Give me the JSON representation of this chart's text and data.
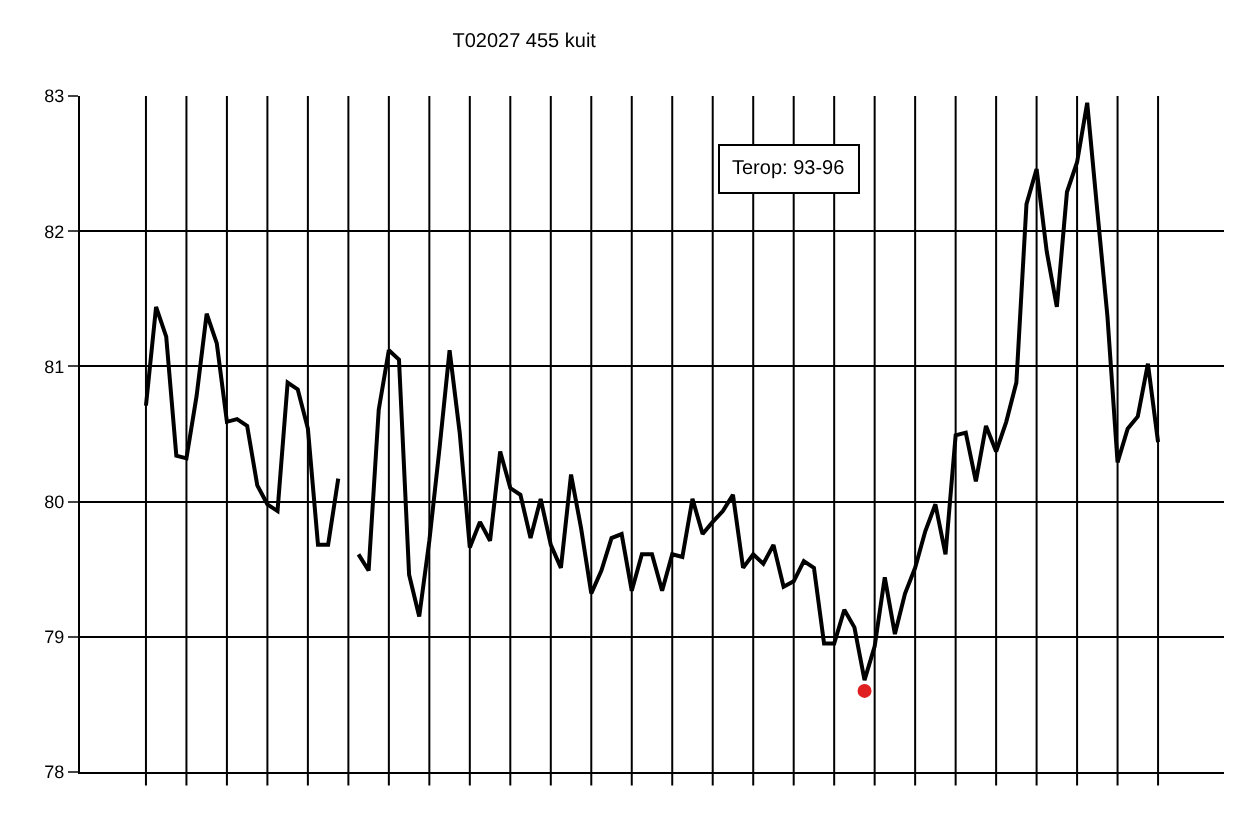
{
  "chart_data": {
    "type": "line",
    "title": "T02027 455 kuit",
    "annotations": [
      "Terop: 93-96"
    ],
    "categories": [
      null,
      null,
      null,
      null,
      null,
      null,
      null,
      null,
      null,
      null,
      null,
      null,
      null,
      null,
      null,
      null,
      null,
      null,
      null,
      null,
      null,
      null,
      null,
      null,
      null,
      null,
      null,
      null,
      null,
      null,
      null,
      null,
      null,
      null,
      null,
      null,
      null,
      null,
      null,
      null,
      null,
      null,
      null,
      null,
      null,
      null,
      null,
      null,
      null,
      null,
      null,
      null,
      null,
      null,
      null,
      null,
      null,
      null,
      null,
      null,
      null,
      null,
      null,
      null,
      null,
      null,
      null,
      null,
      null,
      null,
      null,
      null,
      null,
      null,
      null,
      null,
      null,
      null,
      null,
      null,
      null,
      null,
      null,
      null,
      null,
      null,
      null,
      null,
      null,
      null,
      null,
      null,
      null,
      null,
      null,
      null,
      null,
      null,
      null,
      null,
      null
    ],
    "series": [
      {
        "type": "line",
        "color": "#000000",
        "marker": "none",
        "values": [
          80.71,
          81.44,
          81.22,
          80.34,
          80.32,
          80.78,
          81.39,
          81.17,
          80.59,
          80.61,
          80.56,
          80.12,
          79.98,
          79.93,
          80.88,
          80.83,
          80.54,
          79.68,
          79.68,
          80.17,
          null,
          null,
          null,
          null,
          null,
          null,
          null,
          null,
          null,
          null,
          null,
          null,
          null,
          null,
          null,
          null,
          null,
          null,
          null,
          null,
          null,
          null,
          null,
          null,
          null,
          null,
          null,
          null,
          null,
          null,
          null,
          null,
          null,
          null,
          null,
          null,
          null,
          null,
          null,
          null,
          null,
          null,
          null,
          null,
          null,
          null,
          null,
          null,
          null,
          null,
          null,
          null,
          null,
          null,
          null,
          null,
          null,
          null,
          null,
          null,
          null,
          null,
          null,
          null,
          null,
          null,
          null,
          null,
          null,
          null,
          null,
          null,
          null,
          null,
          null,
          null,
          null,
          null,
          null,
          null,
          null
        ]
      },
      {
        "type": "line",
        "color": "#000000",
        "marker": "none",
        "values": [
          null,
          null,
          null,
          null,
          null,
          null,
          null,
          null,
          null,
          null,
          null,
          null,
          null,
          null,
          null,
          null,
          null,
          null,
          null,
          null,
          null,
          79.61,
          79.49,
          80.68,
          81.12,
          81.05,
          79.46,
          79.15,
          79.71,
          80.39,
          81.12,
          80.51,
          79.66,
          79.85,
          79.71,
          80.37,
          80.1,
          80.05,
          79.73,
          80.02,
          79.68,
          79.51,
          80.2,
          79.8,
          79.32,
          79.49,
          79.73,
          79.76,
          79.34,
          79.61,
          79.61,
          79.34,
          79.61,
          79.59,
          80.02,
          79.76,
          79.85,
          79.93,
          80.05,
          79.51,
          79.61,
          79.54,
          79.68,
          79.37,
          79.41,
          79.56,
          79.51,
          78.95,
          78.95,
          79.2,
          79.07,
          78.68,
          78.93,
          79.44,
          79.02,
          79.32,
          79.51,
          79.78,
          79.98,
          79.61,
          80.49,
          80.51,
          80.15,
          80.56,
          80.37,
          80.59,
          80.88,
          82.2,
          82.46,
          81.85,
          81.44,
          82.29,
          82.51,
          82.95,
          82.15,
          81.37,
          80.29,
          80.54,
          80.63,
          81.02,
          80.44
        ]
      },
      {
        "type": "scatter",
        "color": "#e02020",
        "marker": "circle",
        "values": [
          null,
          null,
          null,
          null,
          null,
          null,
          null,
          null,
          null,
          null,
          null,
          null,
          null,
          null,
          null,
          null,
          null,
          null,
          null,
          null,
          null,
          null,
          null,
          null,
          null,
          null,
          null,
          null,
          null,
          null,
          null,
          null,
          null,
          null,
          null,
          null,
          null,
          null,
          null,
          null,
          null,
          null,
          null,
          null,
          null,
          null,
          null,
          null,
          null,
          null,
          null,
          null,
          null,
          null,
          null,
          null,
          null,
          null,
          null,
          null,
          null,
          null,
          null,
          null,
          null,
          null,
          null,
          null,
          null,
          null,
          null,
          78.6,
          null,
          null,
          null,
          null,
          null,
          null,
          null,
          null,
          null,
          null,
          null,
          null,
          null,
          null,
          null,
          null,
          null,
          null,
          null,
          null,
          null,
          null,
          null,
          null,
          null,
          null,
          null,
          null,
          null
        ]
      }
    ],
    "ylim": [
      78,
      83
    ],
    "yticks": [
      78,
      79,
      80,
      81,
      82,
      83
    ],
    "grid": true
  }
}
